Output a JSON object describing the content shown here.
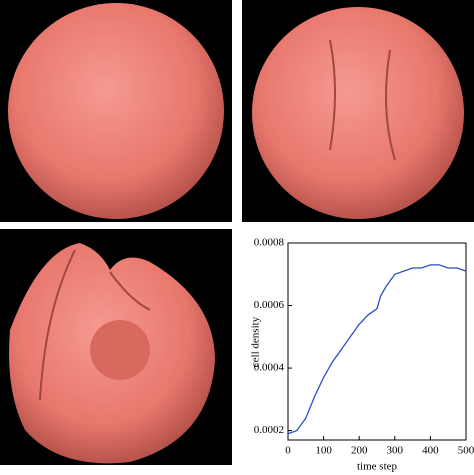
{
  "chart_data": {
    "type": "line",
    "xlabel": "time step",
    "ylabel": "cell density",
    "x": [
      0,
      25,
      50,
      75,
      100,
      125,
      150,
      175,
      200,
      225,
      250,
      260,
      275,
      300,
      325,
      350,
      375,
      400,
      425,
      450,
      475,
      500
    ],
    "series": [
      {
        "color": "#2a4fc4",
        "values": [
          0.00019,
          0.0002,
          0.00024,
          0.00031,
          0.00037,
          0.00042,
          0.00046,
          0.0005,
          0.00054,
          0.00057,
          0.00059,
          0.00063,
          0.00066,
          0.0007,
          0.00071,
          0.00072,
          0.00072,
          0.00073,
          0.00073,
          0.00072,
          0.00072,
          0.00071
        ]
      }
    ],
    "xlim": [
      0,
      500
    ],
    "xticks": [
      0,
      100,
      200,
      300,
      400,
      500
    ],
    "ylim": [
      0.00017,
      0.0008
    ],
    "yticks": [
      0.0002,
      0.0004,
      0.0006,
      0.0008
    ]
  }
}
